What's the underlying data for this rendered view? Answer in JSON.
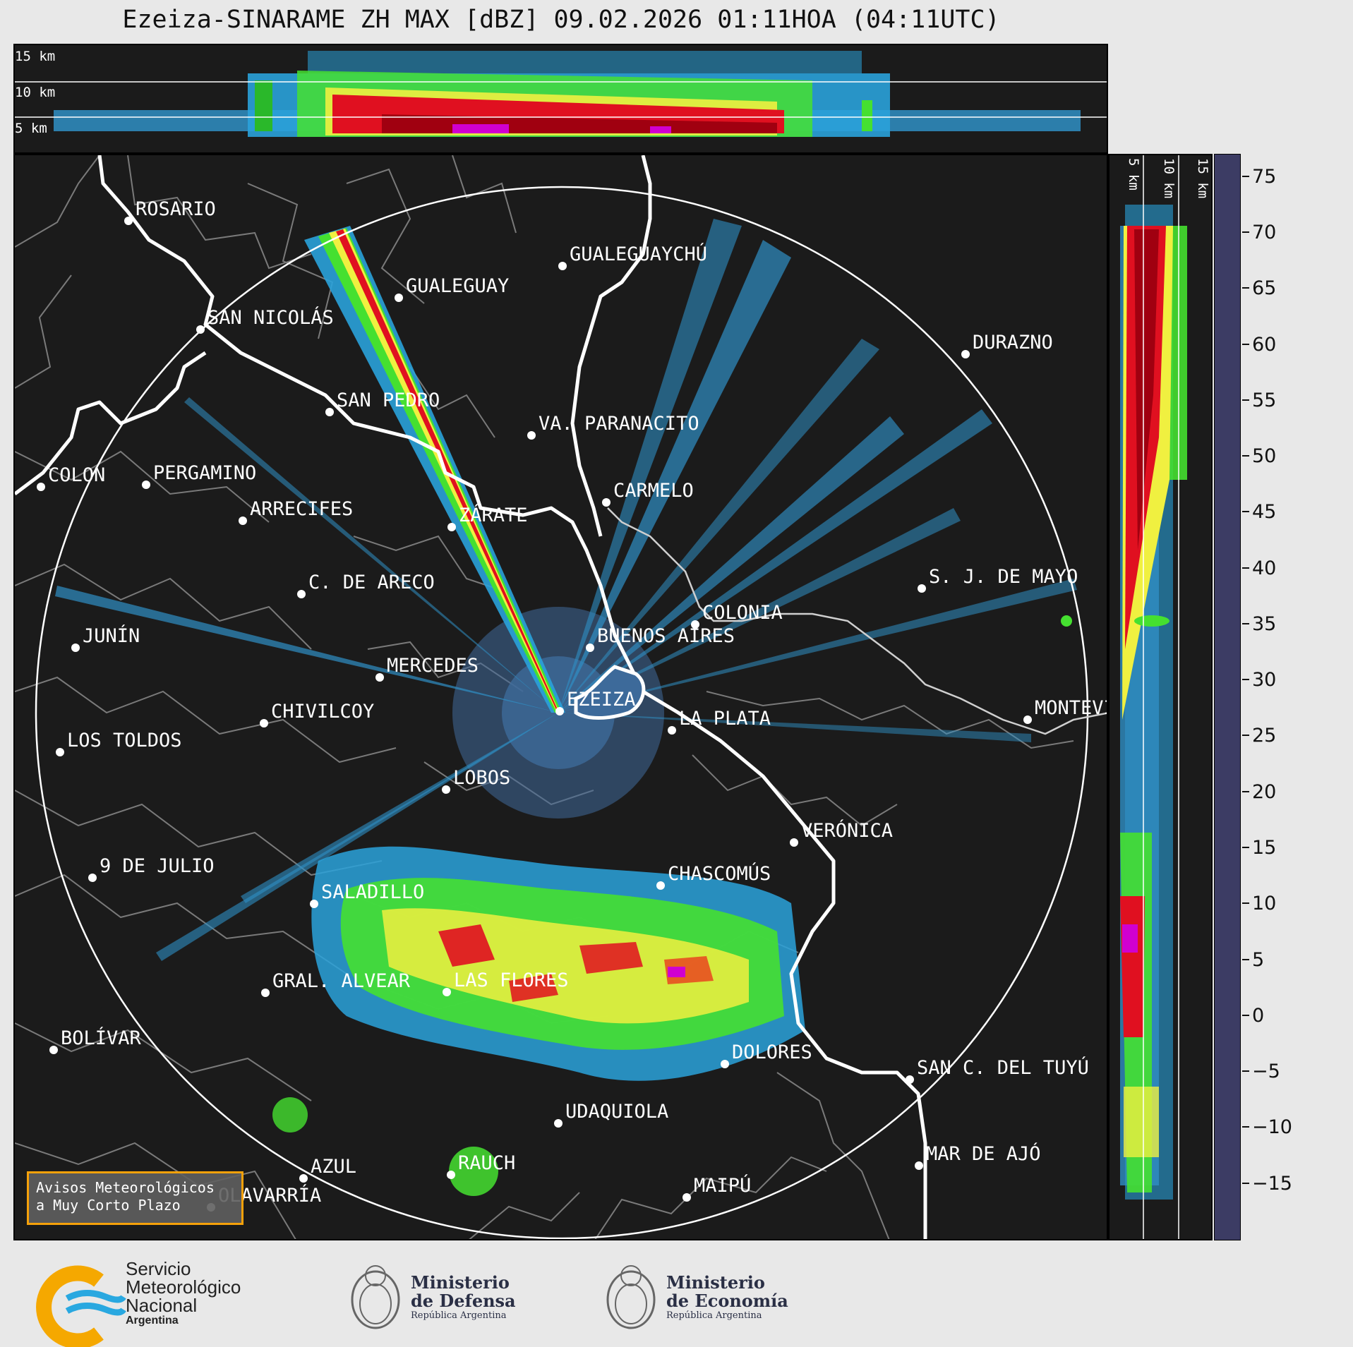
{
  "title": "Ezeiza-SINARAME ZH MAX [dBZ] 09.02.2026 01:11HOA (04:11UTC)",
  "top_panel": {
    "altitude_labels": [
      "15 km",
      "10 km",
      "5 km"
    ]
  },
  "side_panel": {
    "altitude_labels": [
      "5 km",
      "10 km",
      "15 km"
    ]
  },
  "colorbar": {
    "unit": "dBZ",
    "ticks": [
      "75",
      "70",
      "65",
      "60",
      "55",
      "50",
      "45",
      "40",
      "35",
      "30",
      "25",
      "20",
      "15",
      "10",
      "5",
      "0",
      "−5",
      "−10",
      "−15"
    ],
    "range": [
      -20,
      77
    ],
    "colors": [
      "#3c3c64",
      "#3e4a7a",
      "#3f5b8c",
      "#3d6a9a",
      "#3f7fb0",
      "#2f8fc4",
      "#2aa2da",
      "#45e030",
      "#2ab82a",
      "#1f8a1f",
      "#f0f040",
      "#c8c828",
      "#e8a020",
      "#e85020",
      "#e01020",
      "#a00010",
      "#e00080",
      "#d000d0",
      "#800080",
      "#ffffff",
      "#c8f0e0",
      "#a0e8d0",
      "#80dcc0"
    ],
    "color_band_edges": [
      -20,
      -15,
      -10,
      -5,
      0,
      5,
      10,
      18,
      20,
      25,
      30,
      35,
      40,
      42,
      45,
      48,
      50,
      53,
      55,
      59,
      60,
      65,
      70,
      77
    ]
  },
  "map": {
    "center": "EZEIZA",
    "cities": [
      "ROSARIO",
      "GUALEGUAYCHÚ",
      "GUALEGUAY",
      "SAN NICOLÁS",
      "DURAZNO",
      "SAN PEDRO",
      "VA. PARANACITO",
      "COLON",
      "PERGAMINO",
      "CARMELO",
      "ARRECIFES",
      "ZÁRATE",
      "S. J. DE MAYO",
      "C. DE ARECO",
      "COLONIA",
      "JUNÍN",
      "BUENOS AIRES",
      "MERCEDES",
      "MONTEVIDEO",
      "EZEIZA",
      "CHIVILCOY",
      "LA PLATA",
      "LOS TOLDOS",
      "LOBOS",
      "VERÓNICA",
      "9 DE JULIO",
      "CHASCOMÚS",
      "SALADILLO",
      "GRAL. ALVEAR",
      "LAS FLORES",
      "BOLÍVAR",
      "DOLORES",
      "SAN C. DEL TUYÚ",
      "UDAQUIOLA",
      "MAR DE AJÓ",
      "AZUL",
      "RAUCH",
      "OLAVARRÍA",
      "MAIPÚ"
    ]
  },
  "alert": {
    "line1": "Avisos Meteorológicos",
    "line2": "a Muy Corto Plazo"
  },
  "footer": {
    "smn": [
      "Servicio",
      "Meteorológico",
      "Nacional",
      "Argentina"
    ],
    "defensa": [
      "Ministerio",
      "de Defensa",
      "República Argentina"
    ],
    "economia": [
      "Ministerio",
      "de Economía",
      "República Argentina"
    ]
  }
}
